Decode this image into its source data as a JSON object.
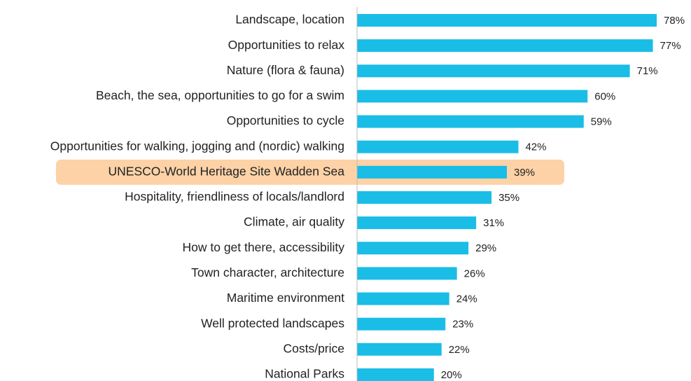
{
  "chart_data": {
    "type": "barh",
    "categories": [
      "Landscape, location",
      "Opportunities to relax",
      "Nature (flora & fauna)",
      "Beach, the sea, opportunities to go for a swim",
      "Opportunities to cycle",
      "Opportunities for walking, jogging and (nordic) walking",
      "UNESCO-World Heritage Site Wadden Sea",
      "Hospitality, friendliness of locals/landlord",
      "Climate, air quality",
      "How to get there, accessibility",
      "Town character, architecture",
      "Maritime environment",
      "Well protected landscapes",
      "Costs/price",
      "National Parks"
    ],
    "values": [
      78,
      77,
      71,
      60,
      59,
      42,
      39,
      35,
      31,
      29,
      26,
      24,
      23,
      22,
      20
    ],
    "value_labels": [
      "78%",
      "77%",
      "71%",
      "60%",
      "59%",
      "42%",
      "39%",
      "35%",
      "31%",
      "29%",
      "26%",
      "24%",
      "23%",
      "22%",
      "20%"
    ],
    "color": "#19bde6",
    "xlim": [
      0,
      80
    ],
    "highlight": {
      "index": 6,
      "color": "#fcd2a6"
    }
  }
}
